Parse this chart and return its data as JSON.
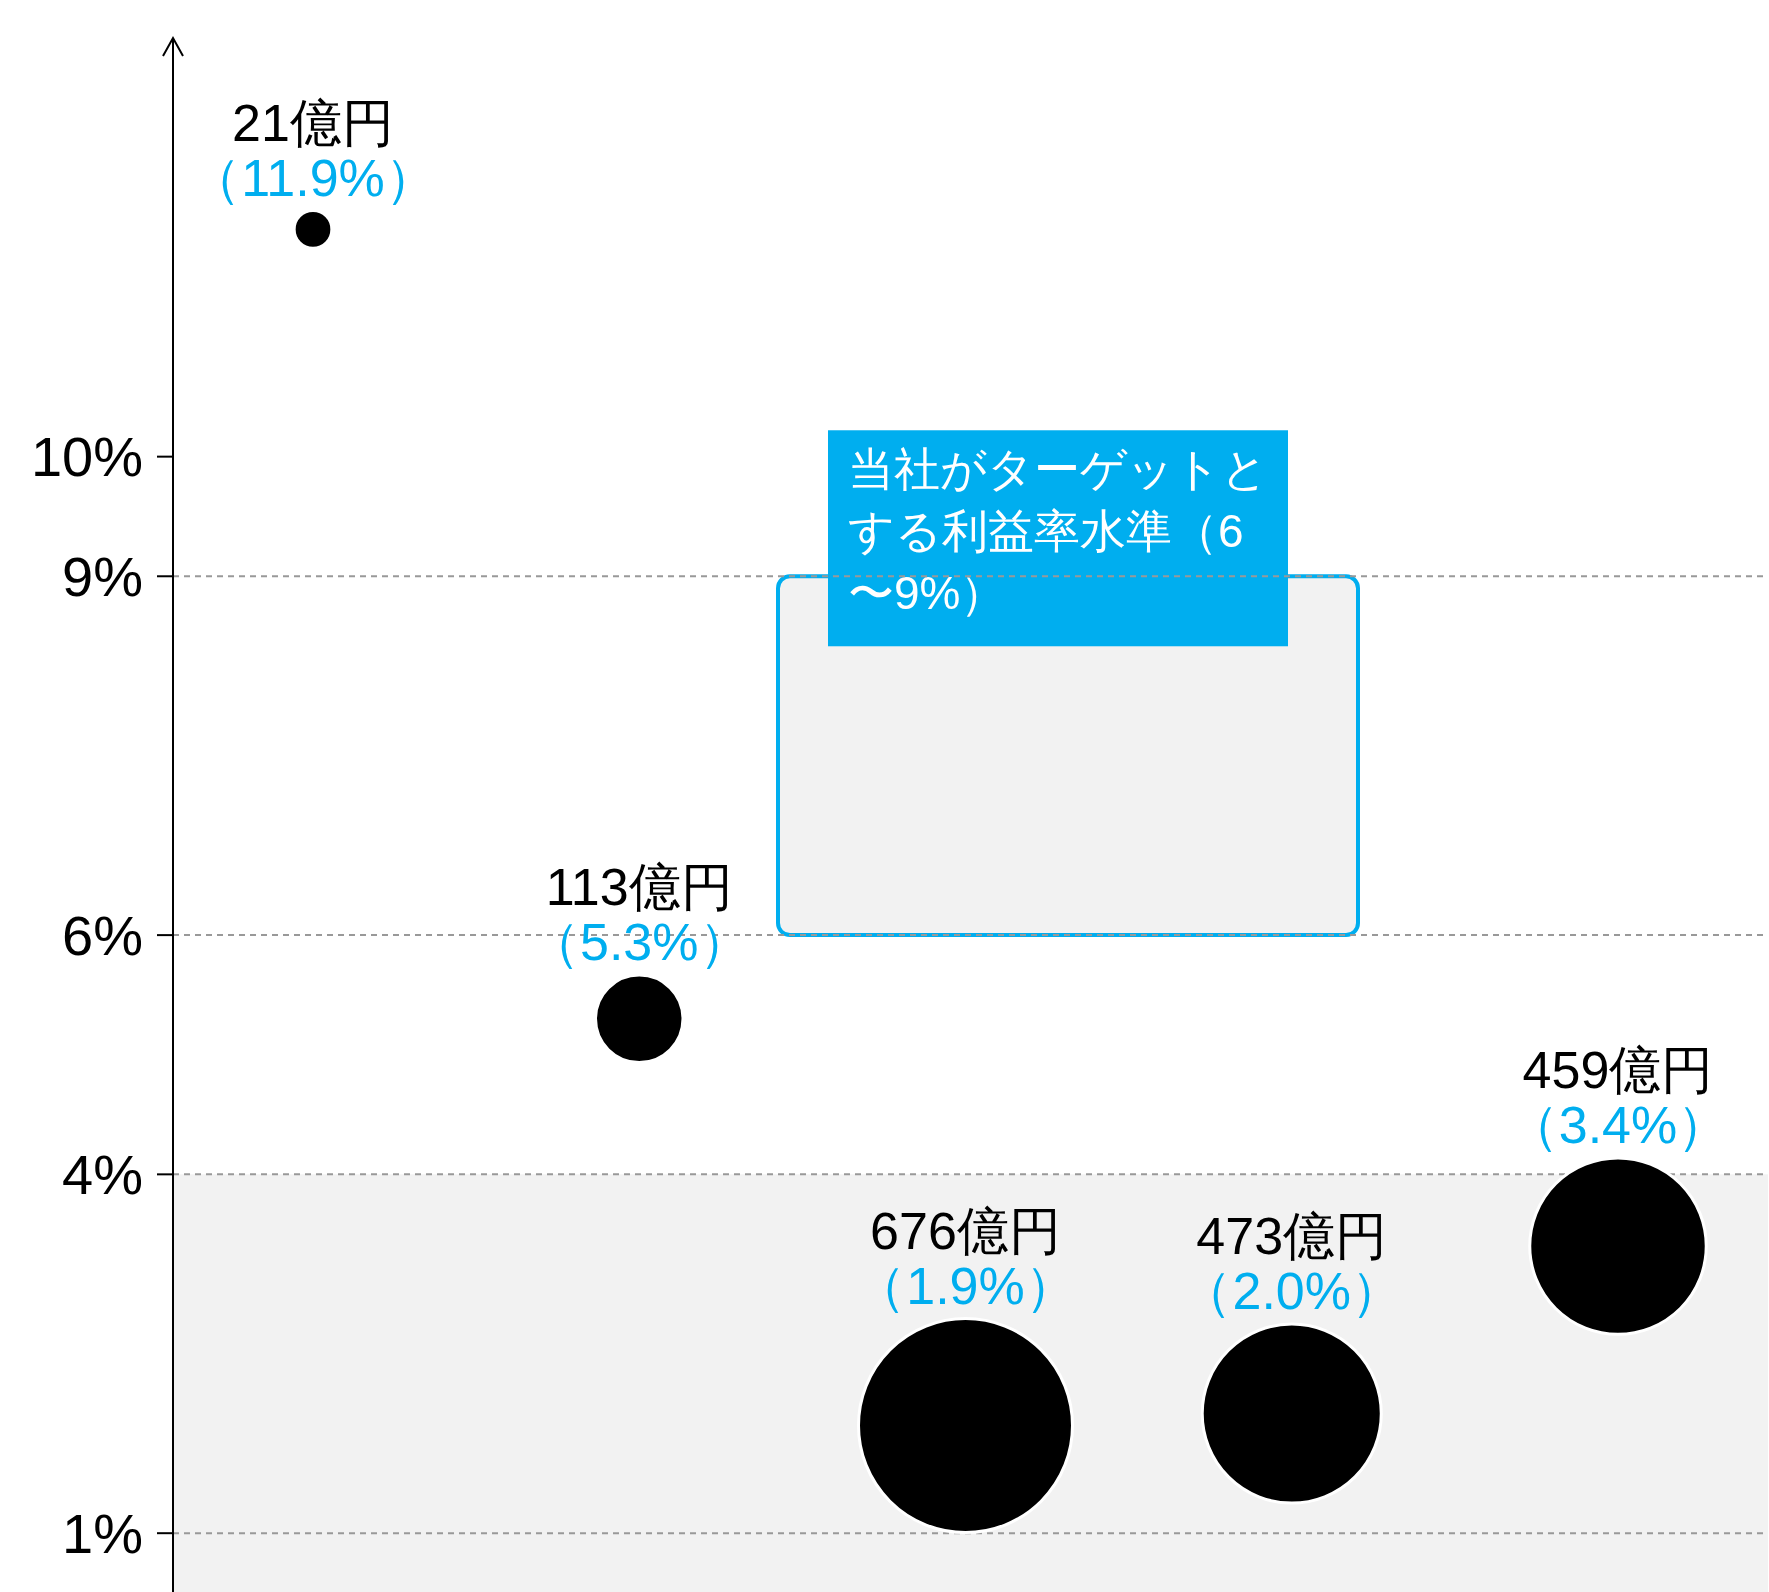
{
  "chart_data": {
    "type": "bubble",
    "categories": [
      null,
      null,
      null,
      null,
      null
    ],
    "series": [
      {
        "color": "#000000",
        "values": [
          11.9,
          5.3,
          1.9,
          2.0,
          3.4
        ],
        "sizes": [
          0.031,
          0.167,
          1,
          0.7,
          0.68
        ],
        "value_labels": [
          "（11.9%）",
          "（5.3%）",
          "（1.9%）",
          "（2.0%）",
          "（3.4%）"
        ]
      }
    ],
    "annotations": [
      "21億円",
      "113億円",
      "676億円",
      "473億円",
      "459億円"
    ],
    "ylim": [
      0.5,
      13.5
    ],
    "yticks": [
      {
        "value": 1,
        "label": "1%"
      },
      {
        "value": 4,
        "label": "4%"
      },
      {
        "value": 6,
        "label": "6%"
      },
      {
        "value": 9,
        "label": "9%"
      },
      {
        "value": 10,
        "label": "10%"
      }
    ],
    "ref_lines": [
      {
        "axis": "y",
        "value": 1,
        "line_style": "dashed",
        "color": "#999999"
      },
      {
        "axis": "y",
        "value": 4,
        "line_style": "dashed",
        "color": "#999999"
      },
      {
        "axis": "y",
        "value": 6,
        "line_style": "dashed",
        "color": "#999999"
      },
      {
        "axis": "y",
        "value": 9,
        "line_style": "dashed",
        "color": "#999999"
      }
    ],
    "bands": [
      {
        "axis": "y",
        "from": 0.5,
        "to": 4,
        "color": "#f2f2f2"
      },
      {
        "axis": "y",
        "from": 6,
        "to": 9,
        "color": "#00aeef",
        "label": "当社がターゲットとする利益率水準（6〜9%）"
      }
    ]
  }
}
